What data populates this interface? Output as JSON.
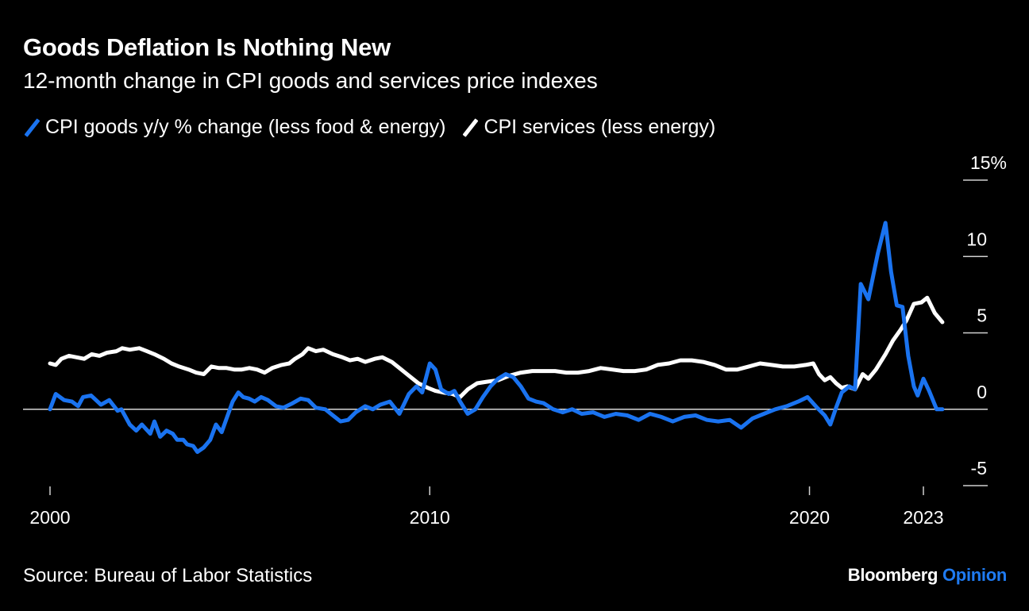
{
  "header": {
    "title": "Goods Deflation Is Nothing New",
    "subtitle": "12-month change in CPI goods and services price indexes"
  },
  "footer": {
    "source": "Source: Bureau of Labor Statistics",
    "brand_main": "Bloomberg",
    "brand_accent": "Opinion",
    "brand_accent_color": "#1f7bf2"
  },
  "chart_data": {
    "type": "line",
    "title": "Goods Deflation Is Nothing New",
    "subtitle": "12-month change in CPI goods and services price indexes",
    "xlabel": "",
    "ylabel": "",
    "xlim": [
      2000,
      2023
    ],
    "ylim": [
      -5,
      15
    ],
    "x_ticks": [
      2000,
      2010,
      2020,
      2023
    ],
    "x_tick_labels": [
      "2000",
      "2010",
      "2020",
      "2023"
    ],
    "y_ticks": [
      15,
      10,
      5,
      0,
      -5
    ],
    "y_tick_labels": [
      "15%",
      "10",
      "5",
      "0",
      "-5"
    ],
    "y_axis_side": "right",
    "zero_line": true,
    "grid": false,
    "legend_position": "top-left",
    "series": [
      {
        "name": "CPI goods y/y % change (less food & energy)",
        "color": "#1a73f0",
        "points": [
          [
            2000.0,
            0.0
          ],
          [
            2000.15,
            1.0
          ],
          [
            2000.37,
            0.6
          ],
          [
            2000.58,
            0.5
          ],
          [
            2000.74,
            0.2
          ],
          [
            2000.87,
            0.8
          ],
          [
            2001.08,
            0.9
          ],
          [
            2001.34,
            0.3
          ],
          [
            2001.56,
            0.6
          ],
          [
            2001.78,
            -0.1
          ],
          [
            2001.88,
            0.0
          ],
          [
            2002.1,
            -1.0
          ],
          [
            2002.27,
            -1.4
          ],
          [
            2002.42,
            -1.0
          ],
          [
            2002.53,
            -1.3
          ],
          [
            2002.64,
            -1.6
          ],
          [
            2002.75,
            -0.8
          ],
          [
            2002.9,
            -1.8
          ],
          [
            2003.07,
            -1.4
          ],
          [
            2003.23,
            -1.6
          ],
          [
            2003.35,
            -2.0
          ],
          [
            2003.51,
            -2.0
          ],
          [
            2003.61,
            -2.3
          ],
          [
            2003.77,
            -2.4
          ],
          [
            2003.88,
            -2.8
          ],
          [
            2004.05,
            -2.5
          ],
          [
            2004.22,
            -2.0
          ],
          [
            2004.37,
            -1.0
          ],
          [
            2004.52,
            -1.5
          ],
          [
            2004.65,
            -0.6
          ],
          [
            2004.81,
            0.5
          ],
          [
            2004.96,
            1.1
          ],
          [
            2005.09,
            0.8
          ],
          [
            2005.24,
            0.7
          ],
          [
            2005.39,
            0.5
          ],
          [
            2005.56,
            0.8
          ],
          [
            2005.74,
            0.6
          ],
          [
            2005.95,
            0.2
          ],
          [
            2006.15,
            0.1
          ],
          [
            2006.39,
            0.4
          ],
          [
            2006.6,
            0.7
          ],
          [
            2006.8,
            0.6
          ],
          [
            2007.0,
            0.1
          ],
          [
            2007.25,
            0.0
          ],
          [
            2007.45,
            -0.4
          ],
          [
            2007.65,
            -0.8
          ],
          [
            2007.85,
            -0.7
          ],
          [
            2008.05,
            -0.2
          ],
          [
            2008.3,
            0.2
          ],
          [
            2008.5,
            0.0
          ],
          [
            2008.7,
            0.3
          ],
          [
            2008.95,
            0.5
          ],
          [
            2009.2,
            -0.3
          ],
          [
            2009.45,
            1.0
          ],
          [
            2009.65,
            1.5
          ],
          [
            2009.8,
            1.1
          ],
          [
            2010.0,
            3.0
          ],
          [
            2010.15,
            2.6
          ],
          [
            2010.3,
            1.3
          ],
          [
            2010.5,
            1.0
          ],
          [
            2010.65,
            1.2
          ],
          [
            2010.8,
            0.5
          ],
          [
            2011.0,
            -0.3
          ],
          [
            2011.2,
            0.0
          ],
          [
            2011.4,
            0.8
          ],
          [
            2011.6,
            1.5
          ],
          [
            2011.8,
            2.0
          ],
          [
            2012.0,
            2.3
          ],
          [
            2012.2,
            2.1
          ],
          [
            2012.4,
            1.5
          ],
          [
            2012.6,
            0.7
          ],
          [
            2012.8,
            0.5
          ],
          [
            2013.0,
            0.4
          ],
          [
            2013.25,
            0.0
          ],
          [
            2013.5,
            -0.2
          ],
          [
            2013.75,
            0.0
          ],
          [
            2014.0,
            -0.3
          ],
          [
            2014.3,
            -0.2
          ],
          [
            2014.6,
            -0.5
          ],
          [
            2014.9,
            -0.3
          ],
          [
            2015.2,
            -0.4
          ],
          [
            2015.5,
            -0.7
          ],
          [
            2015.8,
            -0.3
          ],
          [
            2016.1,
            -0.5
          ],
          [
            2016.4,
            -0.8
          ],
          [
            2016.7,
            -0.5
          ],
          [
            2017.0,
            -0.4
          ],
          [
            2017.3,
            -0.7
          ],
          [
            2017.6,
            -0.8
          ],
          [
            2017.9,
            -0.7
          ],
          [
            2018.2,
            -1.2
          ],
          [
            2018.5,
            -0.6
          ],
          [
            2018.8,
            -0.3
          ],
          [
            2019.1,
            0.0
          ],
          [
            2019.4,
            0.2
          ],
          [
            2019.7,
            0.5
          ],
          [
            2019.95,
            0.8
          ],
          [
            2020.2,
            0.1
          ],
          [
            2020.4,
            -0.4
          ],
          [
            2020.55,
            -1.0
          ],
          [
            2020.7,
            0.1
          ],
          [
            2020.85,
            1.1
          ],
          [
            2021.05,
            1.5
          ],
          [
            2021.2,
            1.3
          ],
          [
            2021.35,
            8.2
          ],
          [
            2021.55,
            7.2
          ],
          [
            2021.8,
            10.2
          ],
          [
            2022.0,
            12.2
          ],
          [
            2022.15,
            9.0
          ],
          [
            2022.3,
            6.8
          ],
          [
            2022.45,
            6.7
          ],
          [
            2022.6,
            3.5
          ],
          [
            2022.75,
            1.5
          ],
          [
            2022.85,
            0.9
          ],
          [
            2023.0,
            2.0
          ],
          [
            2023.15,
            1.2
          ],
          [
            2023.35,
            0.0
          ],
          [
            2023.5,
            0.0
          ]
        ]
      },
      {
        "name": "CPI services (less energy)",
        "color": "#ffffff",
        "points": [
          [
            2000.0,
            3.0
          ],
          [
            2000.15,
            2.9
          ],
          [
            2000.3,
            3.3
          ],
          [
            2000.5,
            3.5
          ],
          [
            2000.7,
            3.4
          ],
          [
            2000.9,
            3.3
          ],
          [
            2001.1,
            3.6
          ],
          [
            2001.3,
            3.5
          ],
          [
            2001.5,
            3.7
          ],
          [
            2001.75,
            3.8
          ],
          [
            2001.9,
            4.0
          ],
          [
            2002.1,
            3.9
          ],
          [
            2002.35,
            4.0
          ],
          [
            2002.55,
            3.8
          ],
          [
            2002.75,
            3.6
          ],
          [
            2003.0,
            3.3
          ],
          [
            2003.2,
            3.0
          ],
          [
            2003.4,
            2.8
          ],
          [
            2003.65,
            2.6
          ],
          [
            2003.85,
            2.4
          ],
          [
            2004.05,
            2.3
          ],
          [
            2004.25,
            2.8
          ],
          [
            2004.45,
            2.7
          ],
          [
            2004.65,
            2.7
          ],
          [
            2004.85,
            2.6
          ],
          [
            2005.05,
            2.6
          ],
          [
            2005.25,
            2.7
          ],
          [
            2005.45,
            2.6
          ],
          [
            2005.65,
            2.4
          ],
          [
            2005.85,
            2.7
          ],
          [
            2006.1,
            2.9
          ],
          [
            2006.3,
            3.0
          ],
          [
            2006.45,
            3.3
          ],
          [
            2006.65,
            3.6
          ],
          [
            2006.8,
            4.0
          ],
          [
            2007.0,
            3.8
          ],
          [
            2007.2,
            3.9
          ],
          [
            2007.45,
            3.6
          ],
          [
            2007.7,
            3.4
          ],
          [
            2007.9,
            3.2
          ],
          [
            2008.1,
            3.3
          ],
          [
            2008.3,
            3.1
          ],
          [
            2008.55,
            3.3
          ],
          [
            2008.75,
            3.4
          ],
          [
            2009.0,
            3.1
          ],
          [
            2009.25,
            2.6
          ],
          [
            2009.45,
            2.2
          ],
          [
            2009.7,
            1.7
          ],
          [
            2009.95,
            1.4
          ],
          [
            2010.15,
            1.2
          ],
          [
            2010.35,
            1.1
          ],
          [
            2010.6,
            1.0
          ],
          [
            2010.8,
            0.8
          ],
          [
            2011.0,
            1.3
          ],
          [
            2011.25,
            1.7
          ],
          [
            2011.5,
            1.8
          ],
          [
            2011.8,
            1.9
          ],
          [
            2012.1,
            2.2
          ],
          [
            2012.4,
            2.4
          ],
          [
            2012.7,
            2.5
          ],
          [
            2013.0,
            2.5
          ],
          [
            2013.3,
            2.5
          ],
          [
            2013.6,
            2.4
          ],
          [
            2013.9,
            2.4
          ],
          [
            2014.2,
            2.5
          ],
          [
            2014.5,
            2.7
          ],
          [
            2014.8,
            2.6
          ],
          [
            2015.1,
            2.5
          ],
          [
            2015.4,
            2.5
          ],
          [
            2015.7,
            2.6
          ],
          [
            2016.0,
            2.9
          ],
          [
            2016.3,
            3.0
          ],
          [
            2016.6,
            3.2
          ],
          [
            2016.9,
            3.2
          ],
          [
            2017.2,
            3.1
          ],
          [
            2017.5,
            2.9
          ],
          [
            2017.8,
            2.6
          ],
          [
            2018.1,
            2.6
          ],
          [
            2018.4,
            2.8
          ],
          [
            2018.7,
            3.0
          ],
          [
            2019.0,
            2.9
          ],
          [
            2019.3,
            2.8
          ],
          [
            2019.6,
            2.8
          ],
          [
            2019.9,
            2.9
          ],
          [
            2020.1,
            3.0
          ],
          [
            2020.25,
            2.3
          ],
          [
            2020.4,
            1.9
          ],
          [
            2020.55,
            2.1
          ],
          [
            2020.7,
            1.7
          ],
          [
            2020.85,
            1.4
          ],
          [
            2021.0,
            1.5
          ],
          [
            2021.2,
            1.3
          ],
          [
            2021.4,
            2.3
          ],
          [
            2021.55,
            2.0
          ],
          [
            2021.75,
            2.6
          ],
          [
            2022.0,
            3.6
          ],
          [
            2022.2,
            4.5
          ],
          [
            2022.4,
            5.2
          ],
          [
            2022.55,
            5.8
          ],
          [
            2022.75,
            6.9
          ],
          [
            2022.95,
            7.0
          ],
          [
            2023.1,
            7.3
          ],
          [
            2023.3,
            6.3
          ],
          [
            2023.5,
            5.7
          ]
        ]
      }
    ]
  }
}
